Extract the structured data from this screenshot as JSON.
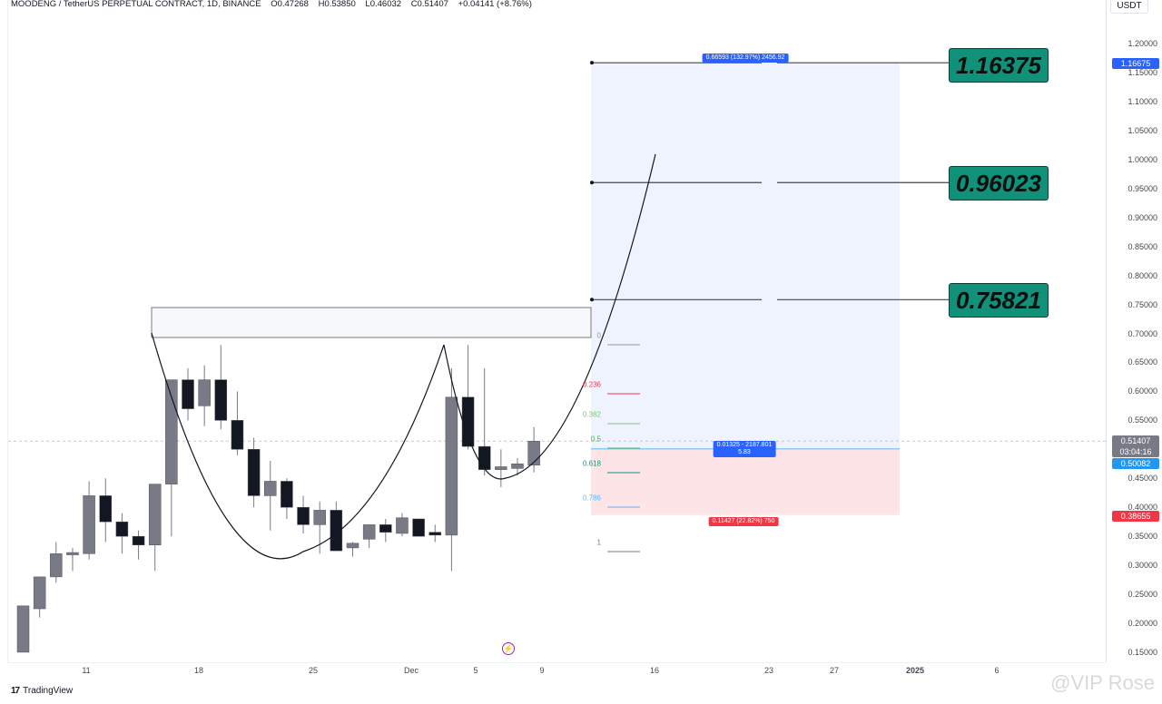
{
  "header": {
    "symbol": "MOODENG / TetherUS PERPETUAL CONTRACT, 1D, BINANCE",
    "open": "O0.47268",
    "high": "H0.53850",
    "low": "L0.46032",
    "close": "C0.51407",
    "change": "+0.04141 (+8.76%)"
  },
  "price_axis": {
    "currency": "USDT",
    "ticks": [
      "1.20000",
      "1.15000",
      "1.10000",
      "1.05000",
      "1.00000",
      "0.95000",
      "0.90000",
      "0.85000",
      "0.80000",
      "0.75000",
      "0.70000",
      "0.65000",
      "0.60000",
      "0.55000",
      "0.45000",
      "0.40000",
      "0.35000",
      "0.30000",
      "0.25000",
      "0.20000",
      "0.15000"
    ],
    "badges": {
      "target": {
        "value": "1.16675",
        "color": "#2962ff"
      },
      "last": {
        "value": "0.51407",
        "countdown": "03:04:16",
        "color": "#787b86"
      },
      "entry": {
        "value": "0.50082",
        "color": "#2196f3"
      },
      "stop": {
        "value": "0.38655",
        "color": "#f23645"
      }
    }
  },
  "time_axis": {
    "labels": [
      {
        "text": "11",
        "bold": false
      },
      {
        "text": "18",
        "bold": false
      },
      {
        "text": "25",
        "bold": false
      },
      {
        "text": "Dec",
        "bold": false
      },
      {
        "text": "5",
        "bold": false
      },
      {
        "text": "9",
        "bold": false
      },
      {
        "text": "16",
        "bold": false
      },
      {
        "text": "23",
        "bold": false
      },
      {
        "text": "27",
        "bold": false
      },
      {
        "text": "2025",
        "bold": true
      },
      {
        "text": "6",
        "bold": false
      }
    ]
  },
  "targets": [
    {
      "label": "1.16375"
    },
    {
      "label": "0.96023"
    },
    {
      "label": "0.75821"
    }
  ],
  "position_tool": {
    "target_label": "0.66593 (132.97%) 2456.92",
    "entry_label_line1": "0.01325 - 2187.801",
    "entry_label_line2": "5.83",
    "stop_label": "0.11427 (22.82%) 750",
    "profit_color": "#eef3fd",
    "loss_color": "#fde4e6"
  },
  "fibonacci": {
    "levels": [
      {
        "label": "0",
        "color": "#9598a1"
      },
      {
        "label": "0.236",
        "color": "#f23645"
      },
      {
        "label": "0.382",
        "color": "#81c784"
      },
      {
        "label": "0.5",
        "color": "#4caf50"
      },
      {
        "label": "0.618",
        "color": "#089981"
      },
      {
        "label": "0.786",
        "color": "#64b5f6"
      },
      {
        "label": "1",
        "color": "#787b86"
      }
    ]
  },
  "footer": {
    "logo": "17",
    "brand": "TradingView",
    "watermark": "@VIP Rose"
  },
  "chart_data": {
    "type": "candlestick",
    "title": "MOODENG / TetherUS PERPETUAL CONTRACT, 1D, BINANCE",
    "xlabel": "",
    "ylabel": "USDT",
    "ylim": [
      0.13,
      1.22
    ],
    "x_ticks": [
      "11",
      "18",
      "25",
      "Dec",
      "5",
      "9",
      "16",
      "23",
      "27",
      "2025",
      "6"
    ],
    "candles": [
      {
        "o": 0.15,
        "h": 0.23,
        "l": 0.15,
        "c": 0.23
      },
      {
        "o": 0.225,
        "h": 0.26,
        "l": 0.21,
        "c": 0.28
      },
      {
        "o": 0.28,
        "h": 0.34,
        "l": 0.27,
        "c": 0.32
      },
      {
        "o": 0.318,
        "h": 0.33,
        "l": 0.29,
        "c": 0.322
      },
      {
        "o": 0.32,
        "h": 0.445,
        "l": 0.31,
        "c": 0.42
      },
      {
        "o": 0.42,
        "h": 0.45,
        "l": 0.34,
        "c": 0.375
      },
      {
        "o": 0.375,
        "h": 0.39,
        "l": 0.32,
        "c": 0.35
      },
      {
        "o": 0.35,
        "h": 0.36,
        "l": 0.31,
        "c": 0.335
      },
      {
        "o": 0.335,
        "h": 0.44,
        "l": 0.29,
        "c": 0.44
      },
      {
        "o": 0.44,
        "h": 0.51,
        "l": 0.35,
        "c": 0.62
      },
      {
        "o": 0.62,
        "h": 0.64,
        "l": 0.55,
        "c": 0.57
      },
      {
        "o": 0.575,
        "h": 0.645,
        "l": 0.54,
        "c": 0.62
      },
      {
        "o": 0.62,
        "h": 0.68,
        "l": 0.535,
        "c": 0.55
      },
      {
        "o": 0.55,
        "h": 0.6,
        "l": 0.49,
        "c": 0.5
      },
      {
        "o": 0.5,
        "h": 0.52,
        "l": 0.4,
        "c": 0.42
      },
      {
        "o": 0.42,
        "h": 0.48,
        "l": 0.36,
        "c": 0.445
      },
      {
        "o": 0.445,
        "h": 0.45,
        "l": 0.38,
        "c": 0.4
      },
      {
        "o": 0.4,
        "h": 0.42,
        "l": 0.355,
        "c": 0.37
      },
      {
        "o": 0.37,
        "h": 0.41,
        "l": 0.32,
        "c": 0.395
      },
      {
        "o": 0.395,
        "h": 0.41,
        "l": 0.325,
        "c": 0.325
      },
      {
        "o": 0.33,
        "h": 0.34,
        "l": 0.315,
        "c": 0.338
      },
      {
        "o": 0.345,
        "h": 0.37,
        "l": 0.33,
        "c": 0.37
      },
      {
        "o": 0.37,
        "h": 0.38,
        "l": 0.34,
        "c": 0.357
      },
      {
        "o": 0.355,
        "h": 0.39,
        "l": 0.35,
        "c": 0.382
      },
      {
        "o": 0.38,
        "h": 0.38,
        "l": 0.36,
        "c": 0.35
      },
      {
        "o": 0.357,
        "h": 0.37,
        "l": 0.34,
        "c": 0.352
      },
      {
        "o": 0.352,
        "h": 0.64,
        "l": 0.29,
        "c": 0.59
      },
      {
        "o": 0.59,
        "h": 0.68,
        "l": 0.5,
        "c": 0.505
      },
      {
        "o": 0.505,
        "h": 0.64,
        "l": 0.455,
        "c": 0.465
      },
      {
        "o": 0.465,
        "h": 0.5,
        "l": 0.435,
        "c": 0.47
      },
      {
        "o": 0.467,
        "h": 0.485,
        "l": 0.455,
        "c": 0.475
      },
      {
        "o": 0.47268,
        "h": 0.5385,
        "l": 0.46032,
        "c": 0.51407
      }
    ],
    "annotations": {
      "resistance_zone": [
        0.7,
        0.75
      ],
      "targets": [
        1.16375,
        0.96023,
        0.75821
      ],
      "position": {
        "target": 1.16675,
        "entry": 0.50082,
        "stop": 0.38655
      },
      "fib_levels": [
        0,
        0.236,
        0.382,
        0.5,
        0.618,
        0.786,
        1
      ],
      "pattern": "cup and handle"
    }
  }
}
